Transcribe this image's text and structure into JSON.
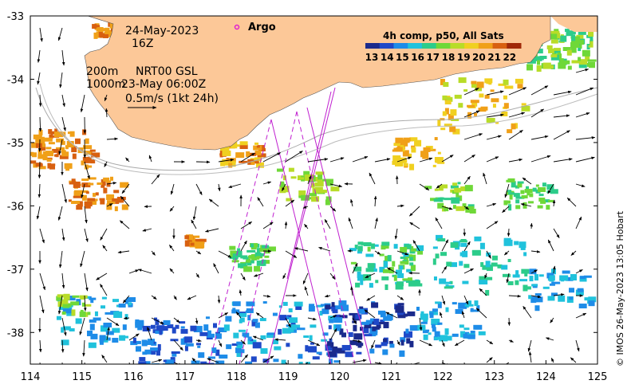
{
  "map": {
    "date_line": "24-May-2023",
    "hour_line": "16Z",
    "argo_label": "Argo",
    "isobath_labels": [
      "200m",
      "1000m"
    ],
    "source_line1": "NRT00 GSL",
    "source_line2": "23-May 06:00Z",
    "scale_label": "0.5m/s (1kt 24h)",
    "credit": "© IMOS 26-May-2023 13:05 Hobart"
  },
  "legend": {
    "title": "4h comp, p50, All Sats",
    "ticks": [
      "13",
      "14",
      "15",
      "16",
      "17",
      "18",
      "19",
      "20",
      "21",
      "22"
    ],
    "colors": [
      "#1a2a8c",
      "#1f49c8",
      "#1e8ce8",
      "#20c2dc",
      "#2ccc8a",
      "#6fd838",
      "#b8dc28",
      "#f0d020",
      "#f0a018",
      "#d86010",
      "#a02808"
    ]
  },
  "axes": {
    "x_ticks": [
      "114",
      "115",
      "116",
      "117",
      "118",
      "119",
      "120",
      "121",
      "122",
      "123",
      "124",
      "125"
    ],
    "y_ticks": [
      "-33",
      "-34",
      "-35",
      "-36",
      "-37",
      "-38"
    ],
    "x_range": [
      114,
      125
    ],
    "y_range": [
      -38.5,
      -33
    ]
  },
  "colors": {
    "land": "#fcc898",
    "argo_marker": "#e020d0",
    "tracks": "#c020d0"
  }
}
